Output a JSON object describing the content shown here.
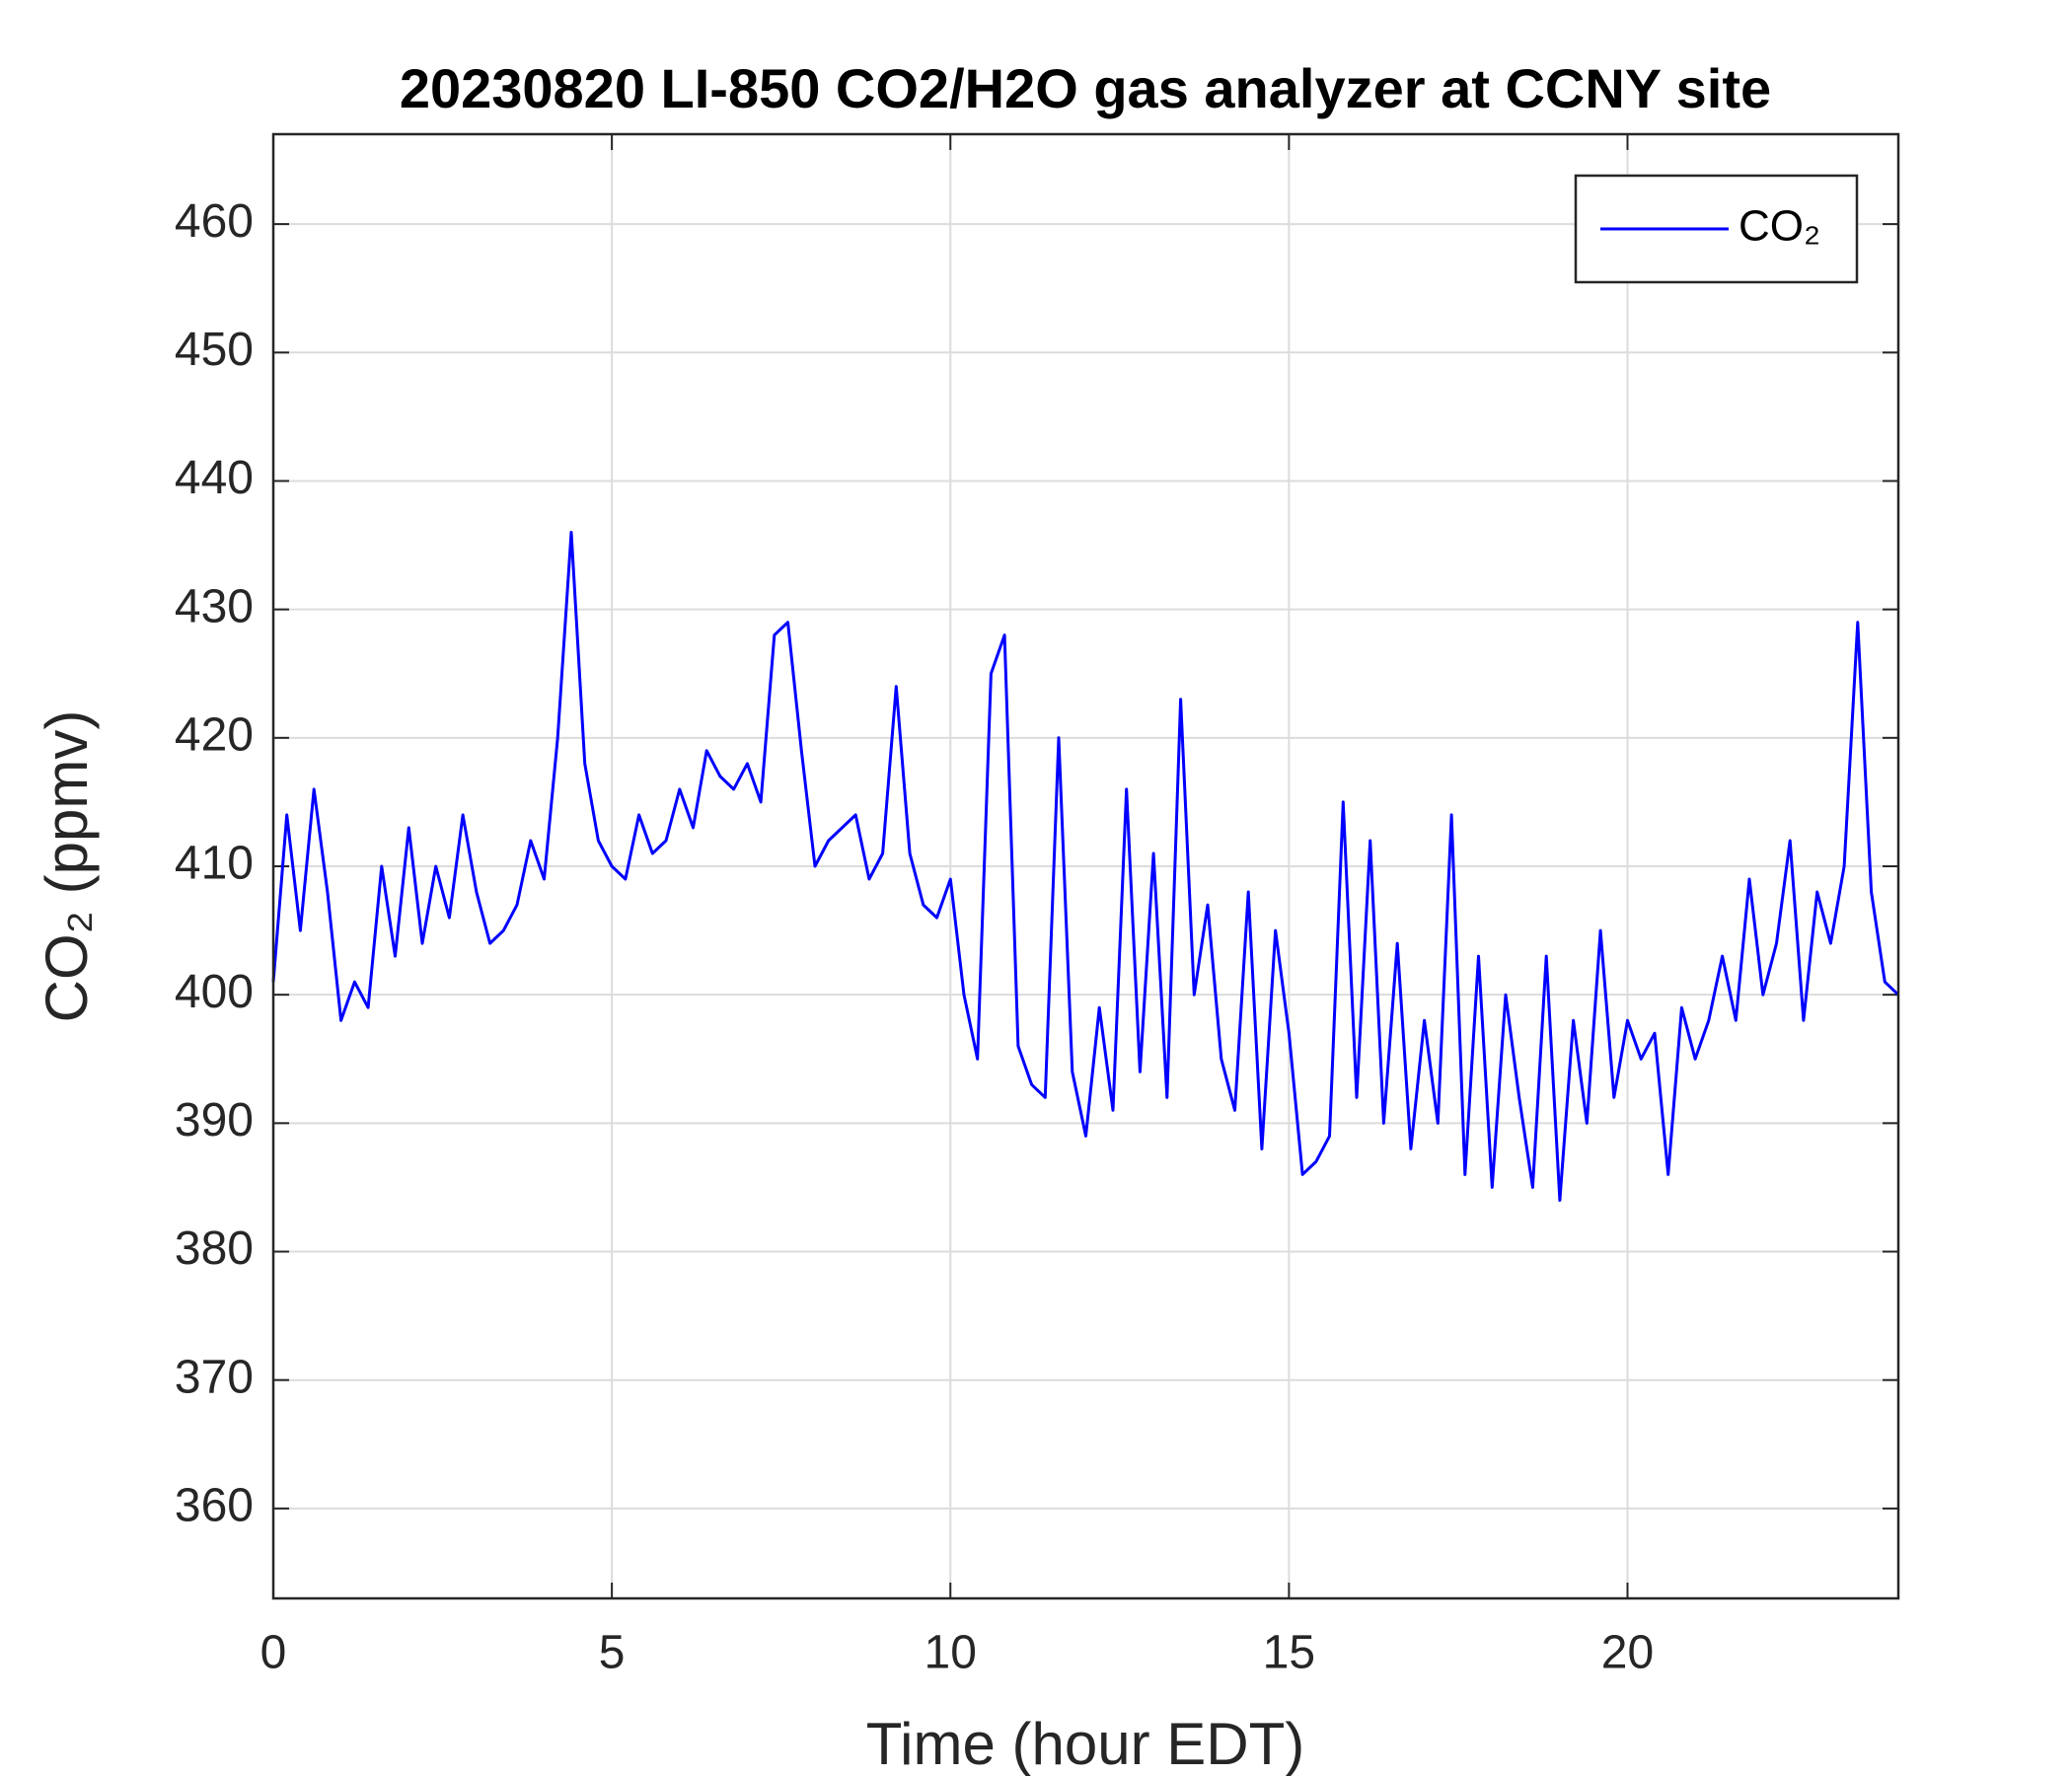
{
  "chart_data": {
    "type": "line",
    "title": "20230820 LI-850 CO2/H2O gas analyzer at CCNY site",
    "xlabel": "Time (hour EDT)",
    "ylabel": "CO₂ (ppmv)",
    "x": [
      0,
      0.2,
      0.4,
      0.6,
      0.8,
      1,
      1.2,
      1.4,
      1.6,
      1.8,
      2,
      2.2,
      2.4,
      2.6,
      2.8,
      3,
      3.2,
      3.4,
      3.6,
      3.8,
      4,
      4.2,
      4.4,
      4.6,
      4.8,
      5,
      5.2,
      5.4,
      5.6,
      5.8,
      6,
      6.2,
      6.4,
      6.6,
      6.8,
      7,
      7.2,
      7.4,
      7.6,
      7.8,
      8,
      8.2,
      8.4,
      8.6,
      8.8,
      9,
      9.2,
      9.4,
      9.6,
      9.8,
      10,
      10.2,
      10.4,
      10.6,
      10.8,
      11,
      11.2,
      11.4,
      11.6,
      11.8,
      12,
      12.2,
      12.4,
      12.6,
      12.8,
      13,
      13.2,
      13.4,
      13.6,
      13.8,
      14,
      14.2,
      14.4,
      14.6,
      14.8,
      15,
      15.2,
      15.4,
      15.6,
      15.8,
      16,
      16.2,
      16.4,
      16.6,
      16.8,
      17,
      17.2,
      17.4,
      17.6,
      17.8,
      18,
      18.2,
      18.4,
      18.6,
      18.8,
      19,
      19.2,
      19.4,
      19.6,
      19.8,
      20,
      20.2,
      20.4,
      20.6,
      20.8,
      21,
      21.2,
      21.4,
      21.6,
      21.8,
      22,
      22.2,
      22.4,
      22.6,
      22.8,
      23,
      23.2,
      23.4,
      23.6,
      23.8,
      24
    ],
    "series": [
      {
        "name": "CO₂",
        "color": "#0000ff",
        "values": [
          401,
          414,
          405,
          416,
          408,
          398,
          401,
          399,
          410,
          403,
          413,
          404,
          410,
          406,
          414,
          408,
          404,
          405,
          407,
          412,
          409,
          420,
          436,
          418,
          412,
          410,
          409,
          414,
          411,
          412,
          416,
          413,
          419,
          417,
          416,
          418,
          415,
          428,
          429,
          419,
          410,
          412,
          413,
          414,
          409,
          411,
          424,
          411,
          407,
          406,
          409,
          400,
          395,
          425,
          428,
          396,
          393,
          392,
          420,
          394,
          389,
          399,
          391,
          416,
          394,
          411,
          392,
          423,
          400,
          407,
          395,
          391,
          408,
          388,
          405,
          397,
          386,
          387,
          389,
          415,
          392,
          412,
          390,
          404,
          388,
          398,
          390,
          414,
          386,
          403,
          385,
          400,
          392,
          385,
          403,
          384,
          398,
          390,
          405,
          392,
          398,
          395,
          397,
          386,
          399,
          395,
          398,
          403,
          398,
          409,
          400,
          404,
          412,
          398,
          408,
          404,
          410,
          429,
          408,
          401,
          400
        ]
      }
    ],
    "xlim": [
      0,
      24
    ],
    "xticks": [
      0,
      5,
      10,
      15,
      20
    ],
    "ylim": [
      353,
      467
    ],
    "yticks": [
      360,
      370,
      380,
      390,
      400,
      410,
      420,
      430,
      440,
      450,
      460
    ],
    "grid": true,
    "legend": "upper right"
  }
}
